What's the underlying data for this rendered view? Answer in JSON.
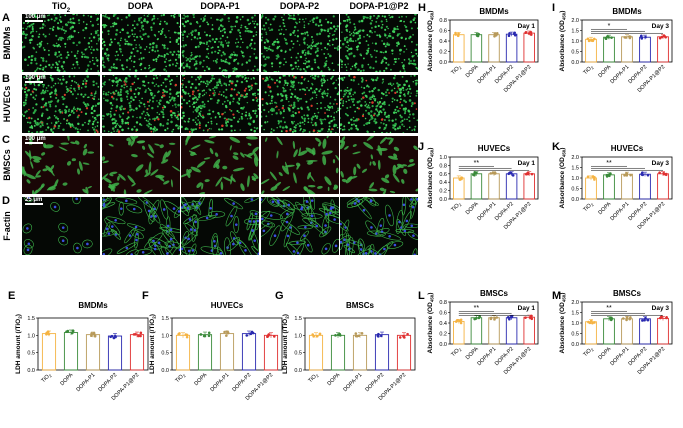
{
  "panel_letters": [
    "A",
    "B",
    "C",
    "D",
    "E",
    "F",
    "G",
    "H",
    "I",
    "J",
    "K",
    "L",
    "M"
  ],
  "micro": {
    "columns": [
      "TiO2",
      "DOPA",
      "DOPA-P1",
      "DOPA-P2",
      "DOPA-P1@P2"
    ],
    "rows": [
      {
        "letter": "A",
        "label": "BMDMs",
        "scale": "100 μm",
        "kind": "dots"
      },
      {
        "letter": "B",
        "label": "HUVECs",
        "scale": "100 μm",
        "kind": "dots-dense"
      },
      {
        "letter": "C",
        "label": "BMSCs",
        "scale": "100 μm",
        "kind": "cells"
      },
      {
        "letter": "D",
        "label": "F-actin",
        "scale": "25 μm",
        "kind": "actin"
      }
    ]
  },
  "colors": {
    "tio2": "#f5b342",
    "dopa": "#3a8a3a",
    "p1": "#b89a5a",
    "p2": "#2a2ab0",
    "p1p2": "#e03030"
  },
  "chart_data": [
    {
      "id": "E",
      "type": "bar",
      "title": "BMDMs",
      "ylabel": "LDH amount (/TiO2)",
      "categories": [
        "TiO2",
        "DOPA",
        "DOPA-P1",
        "DOPA-P2",
        "DOPA-P1@P2"
      ],
      "values": [
        1.05,
        1.08,
        1.02,
        0.98,
        1.02
      ],
      "ylim": [
        0,
        1.5
      ],
      "yticks": [
        0,
        0.5,
        1.0,
        1.5
      ]
    },
    {
      "id": "F",
      "type": "bar",
      "title": "HUVECs",
      "ylabel": "LDH amount (/TiO2)",
      "categories": [
        "TiO2",
        "DOPA",
        "DOPA-P1",
        "DOPA-P2",
        "DOPA-P1@P2"
      ],
      "values": [
        1.0,
        1.02,
        1.05,
        1.05,
        1.0
      ],
      "ylim": [
        0,
        1.5
      ],
      "yticks": [
        0,
        0.5,
        1.0,
        1.5
      ]
    },
    {
      "id": "G",
      "type": "bar",
      "title": "BMSCs",
      "ylabel": "LDH amount (/TiO2)",
      "categories": [
        "TiO2",
        "DOPA",
        "DOPA-P1",
        "DOPA-P2",
        "DOPA-P1@P2"
      ],
      "values": [
        1.0,
        1.0,
        1.0,
        1.02,
        1.0
      ],
      "ylim": [
        0,
        1.5
      ],
      "yticks": [
        0,
        0.5,
        1.0,
        1.5
      ]
    },
    {
      "id": "H",
      "type": "bar",
      "title": "BMDMs",
      "ylabel": "Absorbance (OD450)",
      "day": "Day 1",
      "categories": [
        "TiO2",
        "DOPA",
        "DOPA-P1",
        "DOPA-P2",
        "DOPA-P1@P2"
      ],
      "values": [
        0.52,
        0.52,
        0.52,
        0.53,
        0.55
      ],
      "ylim": [
        0,
        0.8
      ],
      "yticks": [
        0,
        0.2,
        0.4,
        0.6,
        0.8
      ],
      "sig": []
    },
    {
      "id": "I",
      "type": "bar",
      "title": "BMDMs",
      "ylabel": "Absorbance (OD450)",
      "day": "Day 3",
      "categories": [
        "TiO2",
        "DOPA",
        "DOPA-P1",
        "DOPA-P2",
        "DOPA-P1@P2"
      ],
      "values": [
        1.08,
        1.18,
        1.2,
        1.18,
        1.2
      ],
      "ylim": [
        0,
        2.0
      ],
      "yticks": [
        0,
        0.5,
        1.0,
        1.5,
        2.0
      ],
      "sig": [
        {
          "from": 0,
          "to": 2,
          "label": "*"
        }
      ]
    },
    {
      "id": "J",
      "type": "bar",
      "title": "HUVECs",
      "ylabel": "Absorbance (OD450)",
      "day": "Day 1",
      "categories": [
        "TiO2",
        "DOPA",
        "DOPA-P1",
        "DOPA-P2",
        "DOPA-P1@P2"
      ],
      "values": [
        0.5,
        0.6,
        0.6,
        0.6,
        0.6
      ],
      "ylim": [
        0,
        1.0
      ],
      "yticks": [
        0,
        0.2,
        0.4,
        0.6,
        0.8,
        1.0
      ],
      "sig": [
        {
          "from": 0,
          "to": 2,
          "label": "**"
        }
      ]
    },
    {
      "id": "K",
      "type": "bar",
      "title": "HUVECs",
      "ylabel": "Absorbance (OD450)",
      "day": "Day 3",
      "categories": [
        "TiO2",
        "DOPA",
        "DOPA-P1",
        "DOPA-P2",
        "DOPA-P1@P2"
      ],
      "values": [
        1.0,
        1.15,
        1.18,
        1.18,
        1.2
      ],
      "ylim": [
        0,
        2.0
      ],
      "yticks": [
        0,
        0.5,
        1.0,
        1.5,
        2.0
      ],
      "sig": [
        {
          "from": 0,
          "to": 2,
          "label": "**"
        }
      ]
    },
    {
      "id": "L",
      "type": "bar",
      "title": "BMSCs",
      "ylabel": "Absorbance (OD450)",
      "day": "Day 1",
      "categories": [
        "TiO2",
        "DOPA",
        "DOPA-P1",
        "DOPA-P2",
        "DOPA-P1@P2"
      ],
      "values": [
        0.43,
        0.5,
        0.5,
        0.5,
        0.51
      ],
      "ylim": [
        0,
        0.8
      ],
      "yticks": [
        0,
        0.2,
        0.4,
        0.6,
        0.8
      ],
      "sig": [
        {
          "from": 0,
          "to": 2,
          "label": "**"
        }
      ]
    },
    {
      "id": "M",
      "type": "bar",
      "title": "BMSCs",
      "ylabel": "Absorbance (OD450)",
      "day": "Day 3",
      "categories": [
        "TiO2",
        "DOPA",
        "DOPA-P1",
        "DOPA-P2",
        "DOPA-P1@P2"
      ],
      "values": [
        1.06,
        1.2,
        1.2,
        1.2,
        1.22
      ],
      "ylim": [
        0,
        2.0
      ],
      "yticks": [
        0,
        0.5,
        1.0,
        1.5,
        2.0
      ],
      "sig": [
        {
          "from": 0,
          "to": 2,
          "label": "**"
        }
      ]
    }
  ]
}
